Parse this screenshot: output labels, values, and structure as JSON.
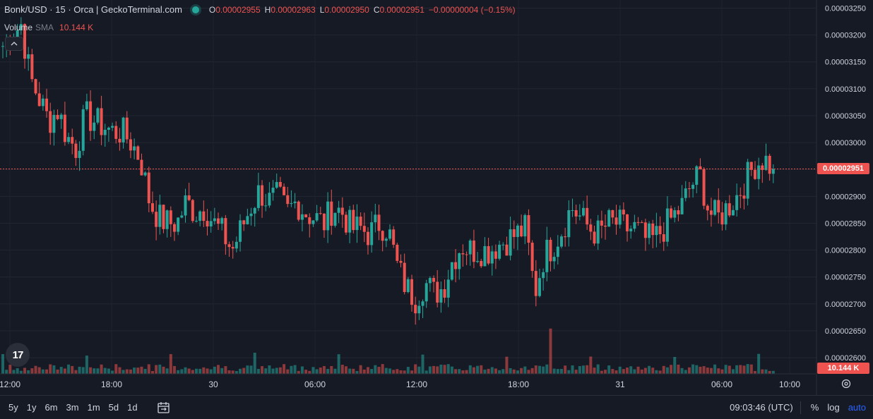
{
  "header": {
    "symbol": "Bonk/USD · 15 · Orca | GeckoTerminal.com",
    "live_indicator_color": "#26a69a",
    "ohlc": {
      "o_label": "O",
      "o_value": "0.00002955",
      "h_label": "H",
      "h_value": "0.00002963",
      "l_label": "L",
      "l_value": "0.00002950",
      "c_label": "C",
      "c_value": "0.00002951",
      "change": "−0.00000004 (−0.15%)"
    }
  },
  "volume_legend": {
    "label": "Volume",
    "indicator": "SMA",
    "value": "10.144 K"
  },
  "collapse_icon": "chevron-up-icon",
  "logo_text": "17",
  "price_axis": {
    "ticks": [
      "0.00003250",
      "0.00003200",
      "0.00003150",
      "0.00003100",
      "0.00003050",
      "0.00003000",
      "0.00002950",
      "0.00002900",
      "0.00002850",
      "0.00002800",
      "0.00002750",
      "0.00002700",
      "0.00002650",
      "0.00002600"
    ],
    "current_price_label": "0.00002951",
    "volume_label": "10.144 K"
  },
  "time_axis": {
    "ticks": [
      "12:00",
      "18:00",
      "30",
      "06:00",
      "12:00",
      "18:00",
      "31",
      "06:00",
      "10:00"
    ]
  },
  "colors": {
    "up": "#26a69a",
    "down": "#ef5350",
    "background": "#161a25",
    "grid": "#232733",
    "accent": "#2962ff"
  },
  "chart_data": {
    "type": "candlestick",
    "title": "Bonk/USD · 15 · Orca | GeckoTerminal.com",
    "ylim": [
      2.57e-05,
      3.265e-05
    ],
    "x_ticks": [
      "12:00",
      "18:00",
      "30",
      "06:00",
      "12:00",
      "18:00",
      "31",
      "06:00",
      "10:00"
    ],
    "last_close": 2.951e-05,
    "close_series": [
      3.18e-05,
      3.2e-05,
      3.22e-05,
      3.12e-05,
      3.08e-05,
      3.04e-05,
      3.06e-05,
      3.01e-05,
      2.99e-05,
      3.05e-05,
      3.04e-05,
      3.03e-05,
      3.02e-05,
      3.02e-05,
      3e-05,
      2.97e-05,
      2.89e-05,
      2.86e-05,
      2.85e-05,
      2.85e-05,
      2.89e-05,
      2.87e-05,
      2.88e-05,
      2.85e-05,
      2.83e-05,
      2.8e-05,
      2.84e-05,
      2.88e-05,
      2.91e-05,
      2.89e-05,
      2.9e-05,
      2.87e-05,
      2.89e-05,
      2.87e-05,
      2.86e-05,
      2.85e-05,
      2.88e-05,
      2.87e-05,
      2.84e-05,
      2.84e-05,
      2.83e-05,
      2.85e-05,
      2.84e-05,
      2.77e-05,
      2.73e-05,
      2.71e-05,
      2.74e-05,
      2.72e-05,
      2.73e-05,
      2.78e-05,
      2.81e-05,
      2.8e-05,
      2.8e-05,
      2.8e-05,
      2.81e-05,
      2.82e-05,
      2.83e-05,
      2.84e-05,
      2.72e-05,
      2.79e-05,
      2.81e-05,
      2.84e-05,
      2.88e-05,
      2.86e-05,
      2.84e-05,
      2.83e-05,
      2.85e-05,
      2.85e-05,
      2.84e-05,
      2.84e-05,
      2.82e-05,
      2.82e-05,
      2.84e-05,
      2.86e-05,
      2.88e-05,
      2.92e-05,
      2.94e-05,
      2.87e-05,
      2.86e-05,
      2.88e-05,
      2.9e-05,
      2.93e-05,
      2.96e-05,
      2.97e-05,
      2.95e-05
    ],
    "volume_unit": "K",
    "last_volume": 10.144
  }
}
